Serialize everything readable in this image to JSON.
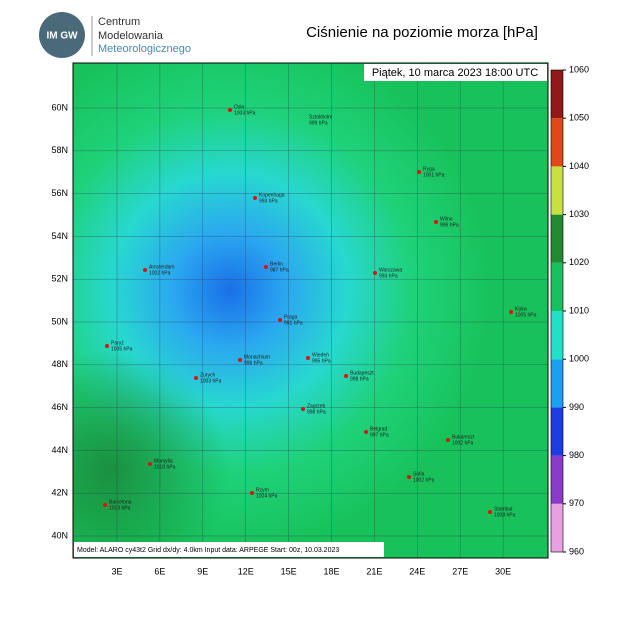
{
  "header": {
    "logo_mark": "IM GW",
    "logo_lines": [
      "Centrum",
      "Modelowania",
      "Meteorologicznego"
    ],
    "title": "Ciśnienie na poziomie morza [hPa]"
  },
  "map": {
    "valid_time": "Piątek, 10 marca 2023 18:00 UTC",
    "footer": "Model: ALARO cy43t2  Grid dx/dy: 4.0km  Input data: ARPEGE  Start: 00z, 10.03.2023",
    "lat_ticks": [
      {
        "value": 40,
        "label": "40N"
      },
      {
        "value": 42,
        "label": "42N"
      },
      {
        "value": 44,
        "label": "44N"
      },
      {
        "value": 46,
        "label": "46N"
      },
      {
        "value": 48,
        "label": "48N"
      },
      {
        "value": 50,
        "label": "50N"
      },
      {
        "value": 52,
        "label": "52N"
      },
      {
        "value": 54,
        "label": "54N"
      },
      {
        "value": 56,
        "label": "56N"
      },
      {
        "value": 58,
        "label": "58N"
      },
      {
        "value": 60,
        "label": "60N"
      }
    ],
    "lon_ticks": [
      {
        "value": 3,
        "label": "3E"
      },
      {
        "value": 6,
        "label": "6E"
      },
      {
        "value": 9,
        "label": "9E"
      },
      {
        "value": 12,
        "label": "12E"
      },
      {
        "value": 15,
        "label": "15E"
      },
      {
        "value": 18,
        "label": "18E"
      },
      {
        "value": 21,
        "label": "21E"
      },
      {
        "value": 24,
        "label": "24E"
      },
      {
        "value": 27,
        "label": "27E"
      },
      {
        "value": 30,
        "label": "30E"
      }
    ],
    "cities": [
      {
        "name": "Oslo",
        "pressure": "1003 hPa"
      },
      {
        "name": "Sztokholm",
        "pressure": "999 hPa"
      },
      {
        "name": "Ryga",
        "pressure": "1001 hPa"
      },
      {
        "name": "Kopenhaga",
        "pressure": "993 hPa"
      },
      {
        "name": "Wilno",
        "pressure": "996 hPa"
      },
      {
        "name": "Amsterdam",
        "pressure": "1002 hPa"
      },
      {
        "name": "Berlin",
        "pressure": "987 hPa"
      },
      {
        "name": "Warszawa",
        "pressure": "993 hPa"
      },
      {
        "name": "Kijów",
        "pressure": "1005 hPa"
      },
      {
        "name": "Paryż",
        "pressure": "1005 hPa"
      },
      {
        "name": "Praga",
        "pressure": "991 hPa"
      },
      {
        "name": "Monachium",
        "pressure": "996 hPa"
      },
      {
        "name": "Wiedeń",
        "pressure": "995 hPa"
      },
      {
        "name": "Zurych",
        "pressure": "1003 hPa"
      },
      {
        "name": "Budapeszt",
        "pressure": "998 hPa"
      },
      {
        "name": "Zagrzeb",
        "pressure": "998 hPa"
      },
      {
        "name": "Belgrad",
        "pressure": "997 hPa"
      },
      {
        "name": "Bukareszt",
        "pressure": "1002 hPa"
      },
      {
        "name": "Marsylia",
        "pressure": "1010 hPa"
      },
      {
        "name": "Sofia",
        "pressure": "1002 hPa"
      },
      {
        "name": "Rzym",
        "pressure": "1004 hPa"
      },
      {
        "name": "Barcelona",
        "pressure": "1013 hPa"
      },
      {
        "name": "Stambuł",
        "pressure": "1008 hPa"
      }
    ]
  },
  "colorbar": {
    "lim": [
      960,
      1060
    ],
    "ticks": [
      960,
      970,
      980,
      990,
      1000,
      1010,
      1020,
      1030,
      1040,
      1050,
      1060
    ],
    "colors": [
      "#e8a0e0",
      "#8a3cc8",
      "#1a3ce0",
      "#1aa0f0",
      "#20e0c8",
      "#18c060",
      "#208a30",
      "#c8e040",
      "#e04818",
      "#901818"
    ]
  }
}
